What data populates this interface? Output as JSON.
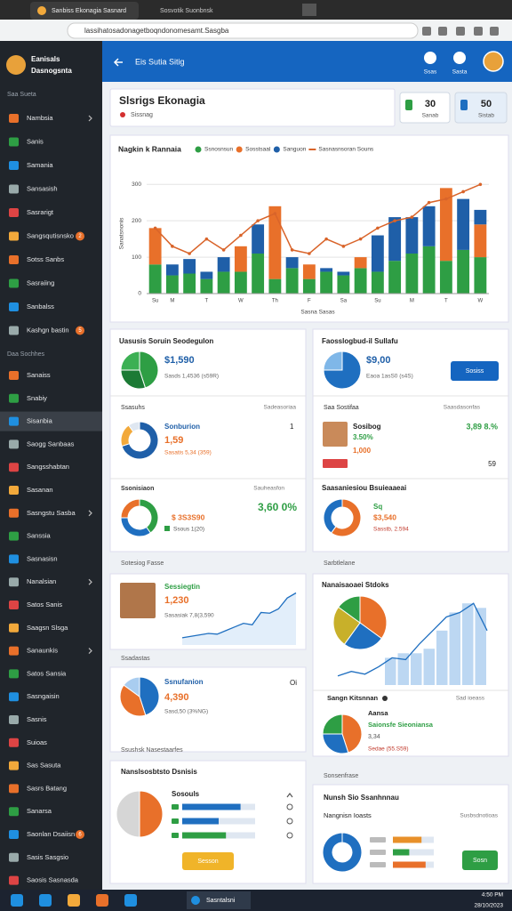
{
  "browser": {
    "tab": "Sanbiss Ekonagia Sasnard",
    "tab2": "Sosvotik Suonbnsk",
    "url": "lassihatosadonagetboqndonomesamt.Sasgba"
  },
  "sidebar": {
    "user": [
      "Eanisals",
      "Dasnogsnta"
    ],
    "section1": "Saa Sueta",
    "items1": [
      {
        "label": "Nambsia"
      },
      {
        "label": "Sanis"
      },
      {
        "label": "Samania"
      },
      {
        "label": "Sansasish"
      },
      {
        "label": "Sasrarigt"
      },
      {
        "label": "Sangsqutisnsko",
        "badge": "2"
      },
      {
        "label": "Sotss Sanbs"
      },
      {
        "label": "Sasraiing"
      },
      {
        "label": "Sanbalss"
      },
      {
        "label": "Kashgn bastin",
        "badge": "5"
      }
    ],
    "section2": "Daa Sochhes",
    "items2": [
      {
        "label": "Sanaiss"
      },
      {
        "label": "Snabiy"
      },
      {
        "label": "Sisanbia"
      },
      {
        "label": "Saogg Sanbaas"
      },
      {
        "label": "Sangsshabtan"
      },
      {
        "label": "Sasanan"
      },
      {
        "label": "Sasngstu Sasba"
      },
      {
        "label": "Sanssia"
      },
      {
        "label": "Sasnasisn"
      },
      {
        "label": "Nanalsian"
      },
      {
        "label": "Satos Sanis"
      },
      {
        "label": "Saagsn Slsga"
      },
      {
        "label": "Sanaunkis"
      },
      {
        "label": "Satos Sansia"
      },
      {
        "label": "Sasngaisin"
      },
      {
        "label": "Sasnis"
      },
      {
        "label": "Suioas"
      },
      {
        "label": "Sas Sasuta"
      },
      {
        "label": "Sasrs Batang"
      },
      {
        "label": "Sanarsa"
      },
      {
        "label": "Saonlan Dsaiisn",
        "badge": "6"
      },
      {
        "label": "Sasis Sasgsio"
      },
      {
        "label": "Saosis Sasnasda"
      }
    ]
  },
  "header": {
    "title": "Eis Sutia Sitig",
    "icons": [
      "Ssas",
      "Sasta"
    ]
  },
  "title_card": {
    "title": "Slsrigs Ekonagia",
    "subtitle": "Sissnag"
  },
  "stats": [
    {
      "value": "30",
      "label": "Sanab"
    },
    {
      "value": "50",
      "label": "Sistab"
    }
  ],
  "chart_data": {
    "type": "bar",
    "title": "Nagkin k Rannaia",
    "ylabel": "Sanatsnonis",
    "xlabel": "Sasna Sasas",
    "categories": [
      "Su",
      "M",
      null,
      "T",
      null,
      "W",
      null,
      "Th",
      null,
      "F",
      null,
      "Sa",
      null,
      "Su",
      null,
      "M",
      null,
      "T",
      null,
      "W"
    ],
    "series": [
      {
        "name": "Ssnosnsun",
        "color": "#2e9e44",
        "values": [
          80,
          50,
          55,
          40,
          60,
          60,
          110,
          40,
          70,
          40,
          60,
          50,
          70,
          60,
          90,
          110,
          130,
          90,
          120,
          100
        ]
      },
      {
        "name": "Sosstsaal",
        "color": "#e8702a",
        "values": [
          100,
          0,
          0,
          0,
          0,
          70,
          0,
          200,
          0,
          40,
          0,
          0,
          30,
          0,
          0,
          0,
          0,
          200,
          0,
          90
        ]
      },
      {
        "name": "Sanguon",
        "color": "#1f5fa8",
        "values": [
          0,
          30,
          40,
          20,
          40,
          0,
          80,
          0,
          30,
          0,
          10,
          10,
          0,
          100,
          120,
          100,
          110,
          0,
          140,
          40
        ]
      },
      {
        "name": "Sasnasnsoran Souns",
        "type": "line",
        "color": "#d9642a",
        "values": [
          180,
          130,
          110,
          150,
          120,
          160,
          200,
          220,
          120,
          110,
          150,
          130,
          150,
          180,
          200,
          210,
          250,
          260,
          280,
          300
        ]
      }
    ],
    "ylim": [
      0,
      330
    ],
    "yticks": [
      0,
      100,
      200,
      300
    ],
    "grid": true
  },
  "panels": {
    "p1": {
      "title": "Uasusis Soruin Seodegulon",
      "value": "$1,590",
      "sub": "Sasds 1,4536 (s59R)",
      "pie": {
        "values": [
          45,
          30,
          25
        ],
        "colors": [
          "#2e9e44",
          "#1c7a35",
          "#3cb054"
        ]
      }
    },
    "p2": {
      "title": "Faosslogbud-il Sullafu",
      "value": "$9,00",
      "sub": "Eaoa 1asS0 (s4S)",
      "button": "Sosiss",
      "pie": {
        "values": [
          75,
          25
        ],
        "colors": [
          "#1f6fc0",
          "#7fb7e8"
        ]
      }
    },
    "p3": {
      "header": "Ssasuhs",
      "right": "Sadeasoriaa",
      "name": "Sonburion",
      "value": "1,59",
      "sub": "Sasatis 5,34 (359)",
      "num": "1",
      "pie": {
        "values": [
          70,
          20,
          10
        ],
        "colors": [
          "#1f5fa8",
          "#f2a93b",
          "#dfe7f1"
        ]
      }
    },
    "p4": {
      "header": "Saa Sostifaa",
      "right": "Saasdasonfas",
      "name": "Sosibog",
      "value": "3.50%",
      "sub": "1,000",
      "stat": "3,89 8.%",
      "num": "59"
    },
    "p5": {
      "header": "Ssonisiaon",
      "right": "Sauheasfon",
      "value": "$ 3S3S90",
      "sub": "Ssous 1(20)",
      "big": "3,60 0%",
      "pie": {
        "values": [
          40,
          35,
          25
        ],
        "colors": [
          "#2e9e44",
          "#1f6fc0",
          "#e8702a"
        ]
      }
    },
    "p6": {
      "header": "Saasaniesiou Bsuieaaeai",
      "name": "Sq",
      "value": "$3,540",
      "sub": "Sasstb, 2.594",
      "pie": {
        "values": [
          60,
          40
        ],
        "colors": [
          "#e8702a",
          "#1f6fc0"
        ]
      }
    },
    "s1": "Sotesiog Fasse",
    "s2": "Sarbtlelane",
    "p7": {
      "name": "Sessiegtin",
      "value": "1,230",
      "sub": "Sasasiak 7,8(3,590",
      "area": {
        "values": [
          10,
          12,
          14,
          16,
          15,
          20,
          25,
          30,
          28,
          45,
          44,
          50,
          65,
          72
        ],
        "ylim": [
          0,
          80
        ]
      }
    },
    "p8": {
      "title": "Nanaisaoaei Stdoks",
      "pie": {
        "values": [
          35,
          25,
          25,
          15
        ],
        "colors": [
          "#e8702a",
          "#1f6fc0",
          "#c8b02a",
          "#2e9e44"
        ]
      },
      "bars": {
        "values": [
          30,
          35,
          35,
          40,
          60,
          80,
          90,
          85
        ],
        "line": [
          10,
          15,
          12,
          20,
          30,
          28,
          45,
          60,
          75,
          80,
          90,
          60
        ],
        "ylim": [
          0,
          100
        ]
      },
      "sub_title": "Sangn Kitsnnan",
      "sub_right": "Sad ioeass",
      "name": "Aansa",
      "value": "Saionsfe Sieoniansa",
      "num": "3,34",
      "sub": "Sedae (55.S59)",
      "pie2": {
        "values": [
          45,
          30,
          25
        ],
        "colors": [
          "#e8702a",
          "#1f6fc0",
          "#2e9e44"
        ]
      }
    },
    "p9": {
      "header": "Ssadastas",
      "name": "Ssnufanion",
      "value": "4,390",
      "sub": "Sasd,50 (3%NG)",
      "num": "Oi",
      "pie": {
        "values": [
          45,
          40,
          15
        ],
        "colors": [
          "#1f6fc0",
          "#e8702a",
          "#a9cdf0"
        ]
      }
    },
    "p11": {
      "section": "Ssushsk Nasestaarfes",
      "title": "Nanslsosbtsto Dsnisis",
      "label": "Sosouls",
      "button": "Sesson",
      "pie": {
        "values": [
          50,
          50
        ],
        "colors": [
          "#e8702a",
          "#d6d6d6"
        ]
      },
      "bars": {
        "values": [
          80,
          50,
          60
        ],
        "xlim": [
          0,
          100
        ],
        "colors": [
          "#1f6fc0",
          "#1f6fc0",
          "#2e9e44"
        ]
      }
    },
    "p12": {
      "section": "Sonsenfrase",
      "title": "Nunsh Sio Ssanhnnau",
      "label": "Nangnisn Ioasts",
      "right": "Susbsdnotioas",
      "button": "Sosn",
      "pie": {
        "values": [
          100
        ],
        "colors": [
          "#1f6fc0"
        ]
      },
      "bars": {
        "values": [
          70,
          40,
          80
        ],
        "xlim": [
          0,
          100
        ],
        "colors": [
          "#e8902a",
          "#2e9e44",
          "#e8702a"
        ]
      }
    }
  },
  "taskbar": {
    "app": "Sasntalsni",
    "time": "4:50 PM",
    "date": "28/10/2023"
  }
}
